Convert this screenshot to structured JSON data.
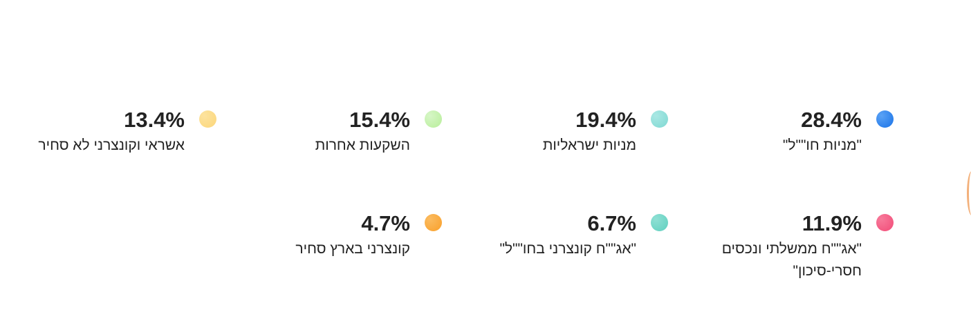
{
  "chart_data": {
    "type": "pie",
    "legend_position": "left",
    "slices": [
      {
        "label": "\"מניות חו\"\"ל\"",
        "value": 28.4,
        "value_text": "28.4%",
        "color": "#1a73e8",
        "color_light": "#5aa2f5"
      },
      {
        "label": "מניות ישראליות",
        "value": 19.4,
        "value_text": "19.4%",
        "color": "#7fd8d2",
        "color_light": "#a9e8e4"
      },
      {
        "label": "השקעות אחרות",
        "value": 15.4,
        "value_text": "15.4%",
        "color": "#b8ee9a",
        "color_light": "#d6f6c6"
      },
      {
        "label": "אשראי וקונצרני לא סחיר",
        "value": 13.4,
        "value_text": "13.4%",
        "color": "#fbd67a",
        "color_light": "#fde39e"
      },
      {
        "label": "\"אג\"\"ח ממשלתי ונכסים חסרי-סיכון\"",
        "value": 11.9,
        "value_text": "11.9%",
        "color": "#f24b78",
        "color_light": "#f77a9a"
      },
      {
        "label": "\"אג\"\"ח קונצרני בחו\"\"ל\"",
        "value": 6.7,
        "value_text": "6.7%",
        "color": "#5fd0bf",
        "color_light": "#8fe0d4"
      },
      {
        "label": "קונצרני בארץ סחיר",
        "value": 4.7,
        "value_text": "4.7%",
        "color": "#f9a02a",
        "color_light": "#fbbb60"
      }
    ]
  }
}
